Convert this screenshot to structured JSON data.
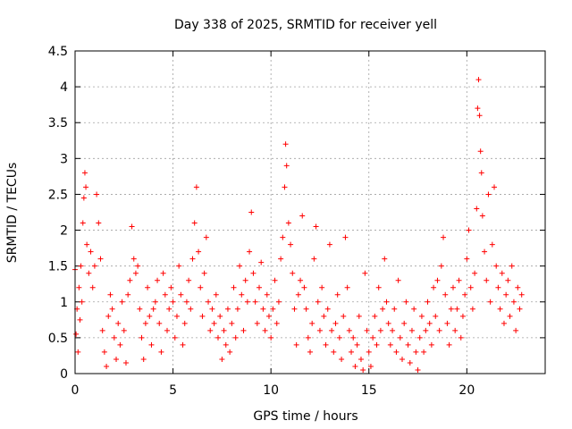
{
  "chart_data": {
    "type": "scatter",
    "title": "Day 338 of 2025, SRMTID for receiver yell",
    "xlabel": "GPS time / hours",
    "ylabel": "SRMTID / TECUs",
    "xlim": [
      0,
      24
    ],
    "ylim": [
      0,
      4.5
    ],
    "x_ticks": [
      0,
      5,
      10,
      15,
      20
    ],
    "x_tick_labels": [
      "0",
      "5",
      "10",
      "15",
      "20"
    ],
    "y_ticks": [
      0,
      0.5,
      1,
      1.5,
      2,
      2.5,
      3,
      3.5,
      4,
      4.5
    ],
    "y_tick_labels": [
      "0",
      "0.5",
      "1",
      "1.5",
      "2",
      "2.5",
      "3",
      "3.5",
      "4",
      "4.5"
    ],
    "grid": true,
    "marker": "+",
    "marker_color": "#ff0000",
    "series": [
      {
        "name": "SRMTID",
        "points": [
          [
            0.0,
            1.45
          ],
          [
            0.05,
            0.55
          ],
          [
            0.1,
            0.9
          ],
          [
            0.15,
            0.3
          ],
          [
            0.2,
            1.2
          ],
          [
            0.25,
            0.75
          ],
          [
            0.3,
            1.5
          ],
          [
            0.35,
            1.0
          ],
          [
            0.4,
            2.1
          ],
          [
            0.45,
            2.45
          ],
          [
            0.5,
            2.8
          ],
          [
            0.55,
            2.6
          ],
          [
            0.6,
            1.8
          ],
          [
            0.7,
            1.4
          ],
          [
            0.8,
            1.7
          ],
          [
            0.9,
            1.2
          ],
          [
            1.0,
            1.5
          ],
          [
            1.1,
            2.5
          ],
          [
            1.2,
            2.1
          ],
          [
            1.3,
            1.6
          ],
          [
            1.4,
            0.6
          ],
          [
            1.5,
            0.3
          ],
          [
            1.6,
            0.1
          ],
          [
            1.7,
            0.8
          ],
          [
            1.8,
            1.1
          ],
          [
            1.9,
            0.9
          ],
          [
            2.0,
            0.5
          ],
          [
            2.1,
            0.2
          ],
          [
            2.2,
            0.7
          ],
          [
            2.3,
            0.4
          ],
          [
            2.4,
            1.0
          ],
          [
            2.5,
            0.6
          ],
          [
            2.6,
            0.15
          ],
          [
            2.7,
            1.1
          ],
          [
            2.8,
            1.3
          ],
          [
            2.9,
            2.05
          ],
          [
            3.0,
            1.6
          ],
          [
            3.1,
            1.4
          ],
          [
            3.2,
            1.5
          ],
          [
            3.3,
            0.9
          ],
          [
            3.4,
            0.5
          ],
          [
            3.5,
            0.2
          ],
          [
            3.6,
            0.7
          ],
          [
            3.7,
            1.2
          ],
          [
            3.8,
            0.8
          ],
          [
            3.9,
            0.4
          ],
          [
            4.0,
            0.9
          ],
          [
            4.1,
            1.0
          ],
          [
            4.2,
            1.3
          ],
          [
            4.3,
            0.7
          ],
          [
            4.4,
            0.3
          ],
          [
            4.5,
            1.4
          ],
          [
            4.6,
            1.1
          ],
          [
            4.7,
            0.6
          ],
          [
            4.8,
            0.9
          ],
          [
            4.9,
            1.2
          ],
          [
            5.0,
            1.0
          ],
          [
            5.1,
            0.5
          ],
          [
            5.2,
            0.8
          ],
          [
            5.3,
            1.5
          ],
          [
            5.4,
            1.1
          ],
          [
            5.5,
            0.4
          ],
          [
            5.6,
            0.7
          ],
          [
            5.7,
            1.0
          ],
          [
            5.8,
            1.3
          ],
          [
            5.9,
            0.9
          ],
          [
            6.0,
            1.6
          ],
          [
            6.1,
            2.1
          ],
          [
            6.2,
            2.6
          ],
          [
            6.3,
            1.7
          ],
          [
            6.4,
            1.2
          ],
          [
            6.5,
            0.8
          ],
          [
            6.6,
            1.4
          ],
          [
            6.7,
            1.9
          ],
          [
            6.8,
            1.0
          ],
          [
            6.9,
            0.6
          ],
          [
            7.0,
            0.9
          ],
          [
            7.1,
            0.7
          ],
          [
            7.2,
            1.1
          ],
          [
            7.3,
            0.5
          ],
          [
            7.4,
            0.8
          ],
          [
            7.5,
            0.2
          ],
          [
            7.6,
            0.6
          ],
          [
            7.7,
            0.4
          ],
          [
            7.8,
            0.9
          ],
          [
            7.9,
            0.3
          ],
          [
            8.0,
            0.7
          ],
          [
            8.1,
            1.2
          ],
          [
            8.2,
            0.5
          ],
          [
            8.3,
            0.9
          ],
          [
            8.4,
            1.5
          ],
          [
            8.5,
            1.1
          ],
          [
            8.6,
            0.6
          ],
          [
            8.7,
            1.3
          ],
          [
            8.8,
            1.0
          ],
          [
            8.9,
            1.7
          ],
          [
            9.0,
            2.25
          ],
          [
            9.1,
            1.4
          ],
          [
            9.2,
            1.0
          ],
          [
            9.3,
            0.7
          ],
          [
            9.4,
            1.2
          ],
          [
            9.5,
            1.55
          ],
          [
            9.6,
            0.9
          ],
          [
            9.7,
            0.6
          ],
          [
            9.8,
            1.1
          ],
          [
            9.9,
            0.8
          ],
          [
            10.0,
            0.5
          ],
          [
            10.1,
            0.9
          ],
          [
            10.2,
            1.3
          ],
          [
            10.3,
            0.7
          ],
          [
            10.4,
            1.0
          ],
          [
            10.5,
            1.6
          ],
          [
            10.6,
            1.9
          ],
          [
            10.7,
            2.6
          ],
          [
            10.75,
            3.2
          ],
          [
            10.8,
            2.9
          ],
          [
            10.9,
            2.1
          ],
          [
            11.0,
            1.8
          ],
          [
            11.1,
            1.4
          ],
          [
            11.2,
            0.9
          ],
          [
            11.3,
            0.4
          ],
          [
            11.4,
            1.1
          ],
          [
            11.5,
            1.3
          ],
          [
            11.6,
            2.2
          ],
          [
            11.7,
            1.2
          ],
          [
            11.8,
            0.9
          ],
          [
            11.9,
            0.5
          ],
          [
            12.0,
            0.3
          ],
          [
            12.1,
            0.7
          ],
          [
            12.2,
            1.6
          ],
          [
            12.3,
            2.05
          ],
          [
            12.4,
            1.0
          ],
          [
            12.5,
            0.6
          ],
          [
            12.6,
            1.2
          ],
          [
            12.7,
            0.8
          ],
          [
            12.8,
            0.4
          ],
          [
            12.9,
            0.9
          ],
          [
            13.0,
            1.8
          ],
          [
            13.1,
            0.6
          ],
          [
            13.2,
            0.3
          ],
          [
            13.3,
            0.7
          ],
          [
            13.4,
            1.1
          ],
          [
            13.5,
            0.5
          ],
          [
            13.6,
            0.2
          ],
          [
            13.7,
            0.8
          ],
          [
            13.8,
            1.9
          ],
          [
            13.9,
            1.2
          ],
          [
            14.0,
            0.6
          ],
          [
            14.1,
            0.3
          ],
          [
            14.2,
            0.5
          ],
          [
            14.3,
            0.1
          ],
          [
            14.4,
            0.4
          ],
          [
            14.5,
            0.8
          ],
          [
            14.6,
            0.2
          ],
          [
            14.7,
            0.05
          ],
          [
            14.8,
            1.4
          ],
          [
            14.9,
            0.6
          ],
          [
            15.0,
            0.3
          ],
          [
            15.1,
            0.1
          ],
          [
            15.2,
            0.5
          ],
          [
            15.3,
            0.8
          ],
          [
            15.4,
            0.4
          ],
          [
            15.5,
            1.2
          ],
          [
            15.6,
            0.6
          ],
          [
            15.7,
            0.9
          ],
          [
            15.8,
            1.6
          ],
          [
            15.9,
            1.0
          ],
          [
            16.0,
            0.7
          ],
          [
            16.1,
            0.4
          ],
          [
            16.2,
            0.6
          ],
          [
            16.3,
            0.9
          ],
          [
            16.4,
            0.3
          ],
          [
            16.5,
            1.3
          ],
          [
            16.6,
            0.5
          ],
          [
            16.7,
            0.2
          ],
          [
            16.8,
            0.7
          ],
          [
            16.9,
            1.0
          ],
          [
            17.0,
            0.4
          ],
          [
            17.1,
            0.15
          ],
          [
            17.2,
            0.6
          ],
          [
            17.3,
            0.9
          ],
          [
            17.4,
            0.3
          ],
          [
            17.5,
            0.05
          ],
          [
            17.6,
            0.5
          ],
          [
            17.7,
            0.8
          ],
          [
            17.8,
            0.3
          ],
          [
            17.9,
            0.6
          ],
          [
            18.0,
            1.0
          ],
          [
            18.1,
            0.7
          ],
          [
            18.2,
            0.4
          ],
          [
            18.3,
            1.2
          ],
          [
            18.4,
            0.8
          ],
          [
            18.5,
            1.3
          ],
          [
            18.6,
            0.6
          ],
          [
            18.7,
            1.5
          ],
          [
            18.8,
            1.9
          ],
          [
            18.9,
            1.1
          ],
          [
            19.0,
            0.7
          ],
          [
            19.1,
            0.4
          ],
          [
            19.2,
            0.9
          ],
          [
            19.3,
            1.2
          ],
          [
            19.4,
            0.6
          ],
          [
            19.5,
            0.9
          ],
          [
            19.6,
            1.3
          ],
          [
            19.7,
            0.5
          ],
          [
            19.8,
            0.8
          ],
          [
            19.9,
            1.1
          ],
          [
            20.0,
            1.6
          ],
          [
            20.1,
            2.0
          ],
          [
            20.2,
            1.2
          ],
          [
            20.3,
            0.9
          ],
          [
            20.4,
            1.4
          ],
          [
            20.5,
            2.3
          ],
          [
            20.55,
            3.7
          ],
          [
            20.6,
            4.1
          ],
          [
            20.65,
            3.6
          ],
          [
            20.7,
            3.1
          ],
          [
            20.75,
            2.8
          ],
          [
            20.8,
            2.2
          ],
          [
            20.9,
            1.7
          ],
          [
            21.0,
            1.3
          ],
          [
            21.1,
            2.5
          ],
          [
            21.2,
            1.0
          ],
          [
            21.3,
            1.8
          ],
          [
            21.4,
            2.6
          ],
          [
            21.5,
            1.5
          ],
          [
            21.6,
            1.2
          ],
          [
            21.7,
            0.9
          ],
          [
            21.8,
            1.4
          ],
          [
            21.9,
            0.7
          ],
          [
            22.0,
            1.1
          ],
          [
            22.1,
            1.3
          ],
          [
            22.2,
            0.8
          ],
          [
            22.3,
            1.5
          ],
          [
            22.4,
            1.0
          ],
          [
            22.5,
            0.6
          ],
          [
            22.6,
            1.2
          ],
          [
            22.7,
            0.9
          ],
          [
            22.8,
            1.1
          ]
        ]
      }
    ]
  }
}
